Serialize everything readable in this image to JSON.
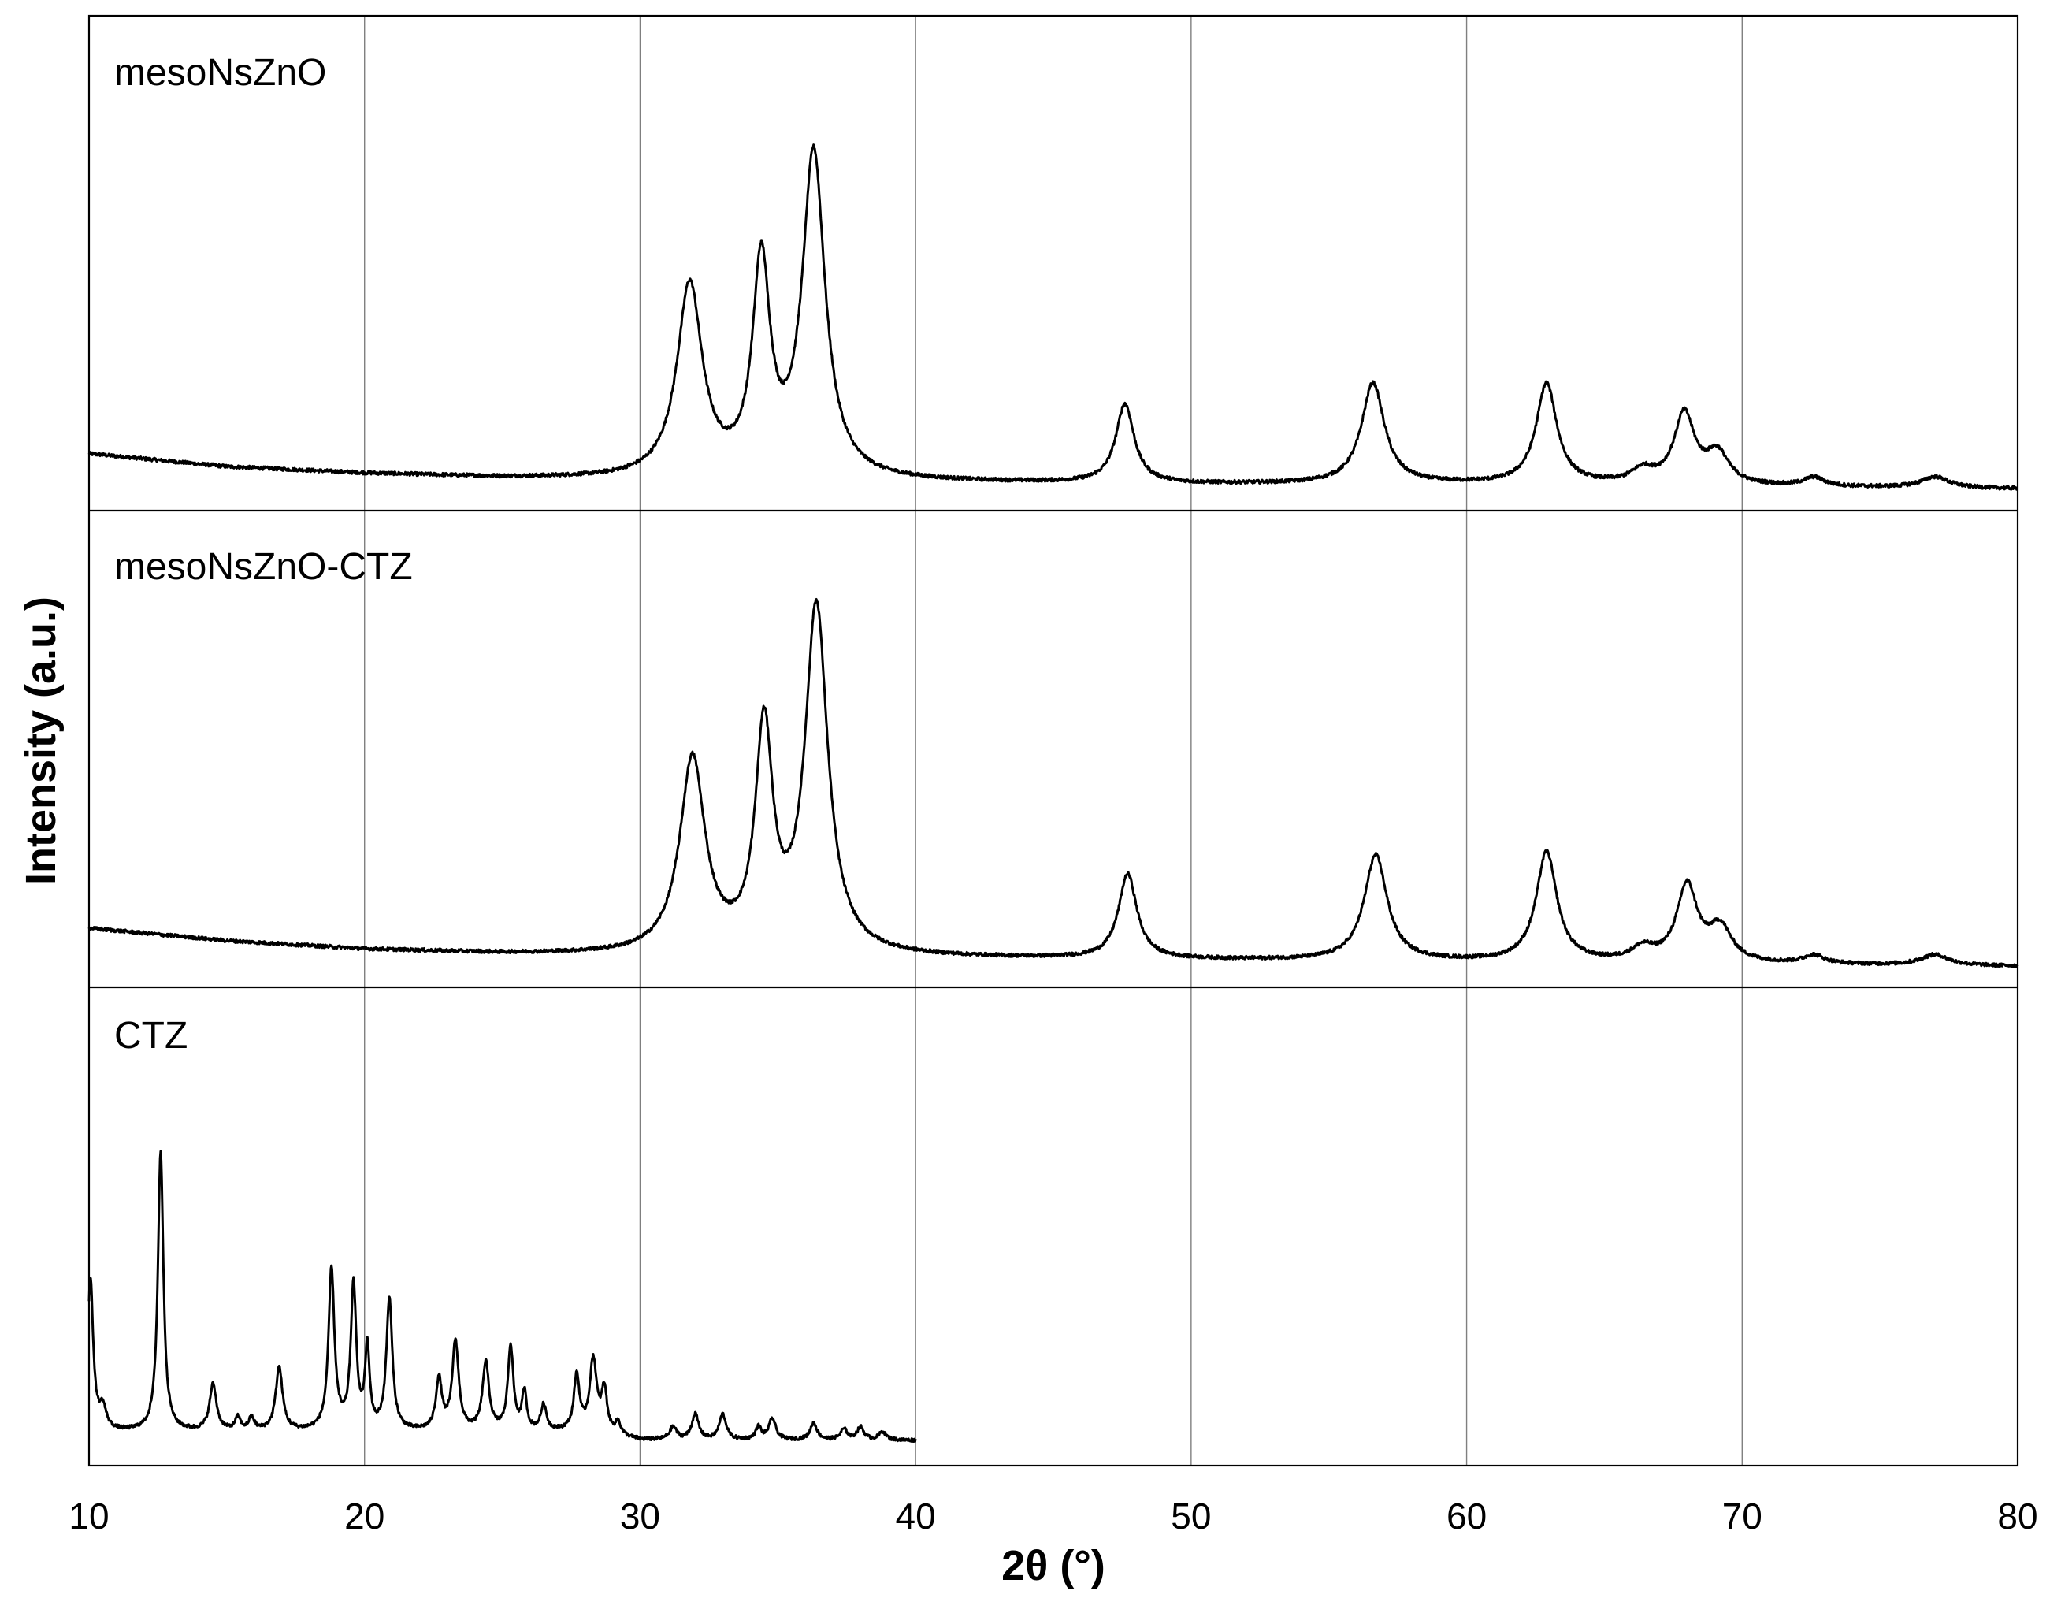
{
  "chart_data": {
    "type": "line",
    "xlabel": "2θ (°)",
    "ylabel": "Intensity (a.u.)",
    "xlim": [
      10,
      80
    ],
    "x_ticks": [
      "10",
      "20",
      "30",
      "40",
      "50",
      "60",
      "70",
      "80"
    ],
    "grid": "vertical lines at every x tick",
    "y_tick_labels": "none",
    "panels": [
      {
        "label": "mesoNsZnO",
        "x_range": [
          10,
          80
        ],
        "ylim": [
          0,
          1
        ],
        "baseline": [
          [
            10,
            0.09
          ],
          [
            15,
            0.06
          ],
          [
            20,
            0.045
          ],
          [
            25,
            0.035
          ],
          [
            30,
            0.03
          ],
          [
            40,
            0.025
          ],
          [
            50,
            0.02
          ],
          [
            60,
            0.02
          ],
          [
            70,
            0.015
          ],
          [
            80,
            0.01
          ]
        ],
        "peaks": [
          {
            "x": 31.8,
            "y": 0.44,
            "w": 0.55
          },
          {
            "x": 34.4,
            "y": 0.48,
            "w": 0.38
          },
          {
            "x": 36.3,
            "y": 0.74,
            "w": 0.5
          },
          {
            "x": 47.6,
            "y": 0.18,
            "w": 0.4
          },
          {
            "x": 56.6,
            "y": 0.23,
            "w": 0.5
          },
          {
            "x": 62.9,
            "y": 0.23,
            "w": 0.45
          },
          {
            "x": 66.4,
            "y": 0.03,
            "w": 0.5
          },
          {
            "x": 67.9,
            "y": 0.16,
            "w": 0.45
          },
          {
            "x": 69.1,
            "y": 0.07,
            "w": 0.5
          },
          {
            "x": 72.6,
            "y": 0.02,
            "w": 0.45
          },
          {
            "x": 77.0,
            "y": 0.025,
            "w": 0.6
          }
        ]
      },
      {
        "label": "mesoNsZnO-CTZ",
        "x_range": [
          10,
          80
        ],
        "ylim": [
          0,
          1
        ],
        "baseline": [
          [
            10,
            0.1
          ],
          [
            15,
            0.07
          ],
          [
            20,
            0.05
          ],
          [
            25,
            0.04
          ],
          [
            30,
            0.035
          ],
          [
            40,
            0.03
          ],
          [
            50,
            0.025
          ],
          [
            60,
            0.02
          ],
          [
            70,
            0.015
          ],
          [
            80,
            0.01
          ]
        ],
        "peaks": [
          {
            "x": 31.9,
            "y": 0.46,
            "w": 0.55
          },
          {
            "x": 34.5,
            "y": 0.52,
            "w": 0.38
          },
          {
            "x": 36.4,
            "y": 0.82,
            "w": 0.5
          },
          {
            "x": 47.7,
            "y": 0.2,
            "w": 0.4
          },
          {
            "x": 56.7,
            "y": 0.25,
            "w": 0.5
          },
          {
            "x": 62.9,
            "y": 0.26,
            "w": 0.45
          },
          {
            "x": 66.4,
            "y": 0.03,
            "w": 0.5
          },
          {
            "x": 68.0,
            "y": 0.18,
            "w": 0.45
          },
          {
            "x": 69.2,
            "y": 0.08,
            "w": 0.5
          },
          {
            "x": 72.6,
            "y": 0.02,
            "w": 0.45
          },
          {
            "x": 77.0,
            "y": 0.025,
            "w": 0.6
          }
        ]
      },
      {
        "label": "CTZ",
        "x_range": [
          10,
          40
        ],
        "ylim": [
          0,
          1
        ],
        "baseline": [
          [
            10,
            0.04
          ],
          [
            20,
            0.04
          ],
          [
            28,
            0.04
          ],
          [
            30,
            0.02
          ],
          [
            40,
            0.02
          ]
        ],
        "peaks": [
          {
            "x": 10.05,
            "y": 0.36,
            "w": 0.12
          },
          {
            "x": 10.5,
            "y": 0.05,
            "w": 0.15
          },
          {
            "x": 12.6,
            "y": 0.66,
            "w": 0.12
          },
          {
            "x": 14.5,
            "y": 0.11,
            "w": 0.15
          },
          {
            "x": 15.4,
            "y": 0.03,
            "w": 0.12
          },
          {
            "x": 15.9,
            "y": 0.03,
            "w": 0.12
          },
          {
            "x": 16.9,
            "y": 0.15,
            "w": 0.15
          },
          {
            "x": 18.8,
            "y": 0.38,
            "w": 0.13
          },
          {
            "x": 19.6,
            "y": 0.34,
            "w": 0.12
          },
          {
            "x": 20.1,
            "y": 0.19,
            "w": 0.1
          },
          {
            "x": 20.9,
            "y": 0.31,
            "w": 0.13
          },
          {
            "x": 22.7,
            "y": 0.12,
            "w": 0.13
          },
          {
            "x": 23.3,
            "y": 0.21,
            "w": 0.14
          },
          {
            "x": 24.4,
            "y": 0.16,
            "w": 0.14
          },
          {
            "x": 25.3,
            "y": 0.2,
            "w": 0.12
          },
          {
            "x": 25.8,
            "y": 0.09,
            "w": 0.1
          },
          {
            "x": 26.5,
            "y": 0.06,
            "w": 0.12
          },
          {
            "x": 27.7,
            "y": 0.13,
            "w": 0.12
          },
          {
            "x": 28.3,
            "y": 0.17,
            "w": 0.15
          },
          {
            "x": 28.7,
            "y": 0.1,
            "w": 0.12
          },
          {
            "x": 29.2,
            "y": 0.03,
            "w": 0.12
          },
          {
            "x": 31.2,
            "y": 0.03,
            "w": 0.15
          },
          {
            "x": 32.0,
            "y": 0.06,
            "w": 0.15
          },
          {
            "x": 33.0,
            "y": 0.06,
            "w": 0.15
          },
          {
            "x": 34.3,
            "y": 0.03,
            "w": 0.12
          },
          {
            "x": 34.8,
            "y": 0.05,
            "w": 0.15
          },
          {
            "x": 36.3,
            "y": 0.04,
            "w": 0.15
          },
          {
            "x": 37.4,
            "y": 0.025,
            "w": 0.15
          },
          {
            "x": 38.0,
            "y": 0.03,
            "w": 0.15
          },
          {
            "x": 38.8,
            "y": 0.02,
            "w": 0.15
          }
        ]
      }
    ]
  }
}
